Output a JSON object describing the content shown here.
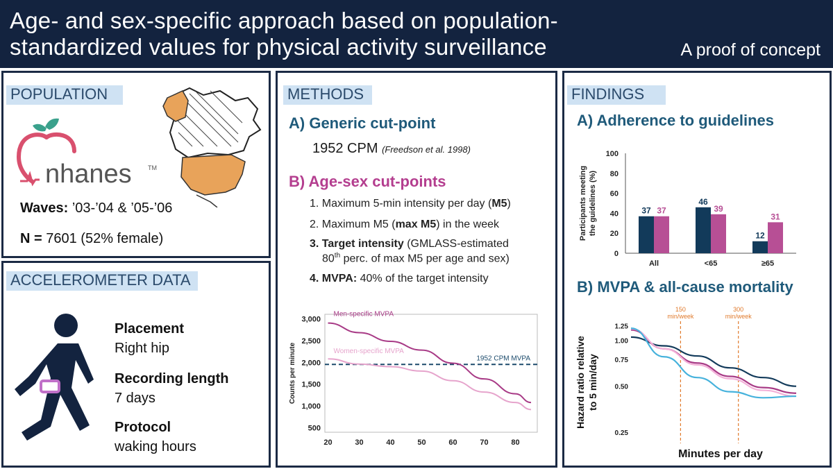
{
  "header": {
    "title_line1": "Age- and sex-specific approach based on population-",
    "title_line2": "standardized values for physical activity surveillance",
    "subtitle": "A proof of concept"
  },
  "population": {
    "title": "POPULATION",
    "logo_text": "nhanes",
    "logo_tm": "TM",
    "waves_label": "Waves:",
    "waves_value": " ’03-’04 & ’05-’06",
    "n_label": "N =",
    "n_value": " 7601 (52% female)"
  },
  "accelerometer": {
    "title": "ACCELEROMETER DATA",
    "placement_label": "Placement",
    "placement_value": "Right hip",
    "recording_label": "Recording length",
    "recording_value": "7 days",
    "protocol_label": "Protocol",
    "protocol_value": "waking hours"
  },
  "methods": {
    "title": "METHODS",
    "a_heading": "A) Generic cut-point",
    "a_value": "1952 CPM",
    "a_citation": "(Freedson et al. 1998)",
    "b_heading": "B) Age-sex cut-points",
    "steps": [
      {
        "num": "1.",
        "pre": "Maximum 5-min intensity per day (",
        "bold": "M5",
        "post": ")"
      },
      {
        "num": "2.",
        "pre": "Maximum M5 (",
        "bold": "max M5",
        "post": ") in the week"
      },
      {
        "num": "3.",
        "bold": "Target intensity",
        "post": " (GMLASS-estimated",
        "line2a": "80",
        "line2sup": "th",
        "line2b": " perc. of max M5 per age and sex)"
      },
      {
        "num": "4.",
        "bold": "MVPA:",
        "post": " 40% of the target intensity"
      }
    ]
  },
  "findings": {
    "title": "FINDINGS",
    "a_heading": "A) Adherence to guidelines",
    "b_heading": "B) MVPA & all-cause mortality"
  },
  "chart_data": [
    {
      "type": "line",
      "ylabel": "Counts per minute",
      "xticks": [
        20,
        30,
        40,
        50,
        60,
        70,
        80
      ],
      "yticks": [
        "500",
        "1,000",
        "1,500",
        "2,000",
        "2,500",
        "3,000"
      ],
      "xlim": [
        19,
        87
      ],
      "ylim": [
        400,
        3100
      ],
      "series": [
        {
          "name": "Men-specific MVPA",
          "color": "#a83a86",
          "x": [
            20,
            30,
            40,
            50,
            60,
            70,
            80,
            85
          ],
          "y": [
            2900,
            2680,
            2480,
            2280,
            1980,
            1620,
            1280,
            1080
          ]
        },
        {
          "name": "Women-specific MVPA",
          "color": "#e6a4cc",
          "x": [
            20,
            30,
            40,
            50,
            60,
            70,
            80,
            85
          ],
          "y": [
            2080,
            1960,
            1900,
            1800,
            1580,
            1320,
            1080,
            920
          ]
        }
      ],
      "reference_line": {
        "name": "1952 CPM MVPA",
        "y": 1952,
        "color": "#1b4a6b"
      }
    },
    {
      "type": "bar",
      "ylabel": "Participants meeting the guidelines (%)",
      "categories": [
        "All",
        "<65",
        "≥65"
      ],
      "ylim": [
        0,
        100
      ],
      "yticks": [
        "0",
        "20",
        "40",
        "60",
        "80",
        "100"
      ],
      "series": [
        {
          "color": "#123a5a",
          "values": [
            37,
            46,
            12
          ]
        },
        {
          "color": "#b74f95",
          "values": [
            37,
            39,
            31
          ]
        }
      ]
    },
    {
      "type": "line",
      "ylabel": "Hazard ratio relative to 5 min/day",
      "xlabel": "Minutes per day",
      "yticks": [
        "0.25",
        "0.50",
        "0.75",
        "1.00",
        "1.25"
      ],
      "annotations": [
        {
          "label_line1": "150",
          "label_line2": "min/week",
          "x": 0.3
        },
        {
          "label_line1": "300",
          "label_line2": "min/week",
          "x": 0.65
        }
      ],
      "series": [
        {
          "color": "#123a5a",
          "x": [
            0,
            0.2,
            0.4,
            0.6,
            0.8,
            1.0
          ],
          "y": [
            1.05,
            0.92,
            0.79,
            0.66,
            0.57,
            0.5
          ]
        },
        {
          "color": "#a83a86",
          "x": [
            0,
            0.2,
            0.4,
            0.6,
            0.8,
            1.0
          ],
          "y": [
            1.17,
            0.88,
            0.71,
            0.58,
            0.49,
            0.45
          ]
        },
        {
          "color": "#f3b0d8",
          "x": [
            0,
            0.2,
            0.4,
            0.6,
            0.8,
            1.0
          ],
          "y": [
            1.19,
            0.88,
            0.69,
            0.56,
            0.47,
            0.43
          ]
        },
        {
          "color": "#46b2dc",
          "x": [
            0,
            0.2,
            0.4,
            0.6,
            0.8,
            1.0
          ],
          "y": [
            1.2,
            0.78,
            0.57,
            0.46,
            0.42,
            0.43
          ]
        }
      ]
    }
  ]
}
